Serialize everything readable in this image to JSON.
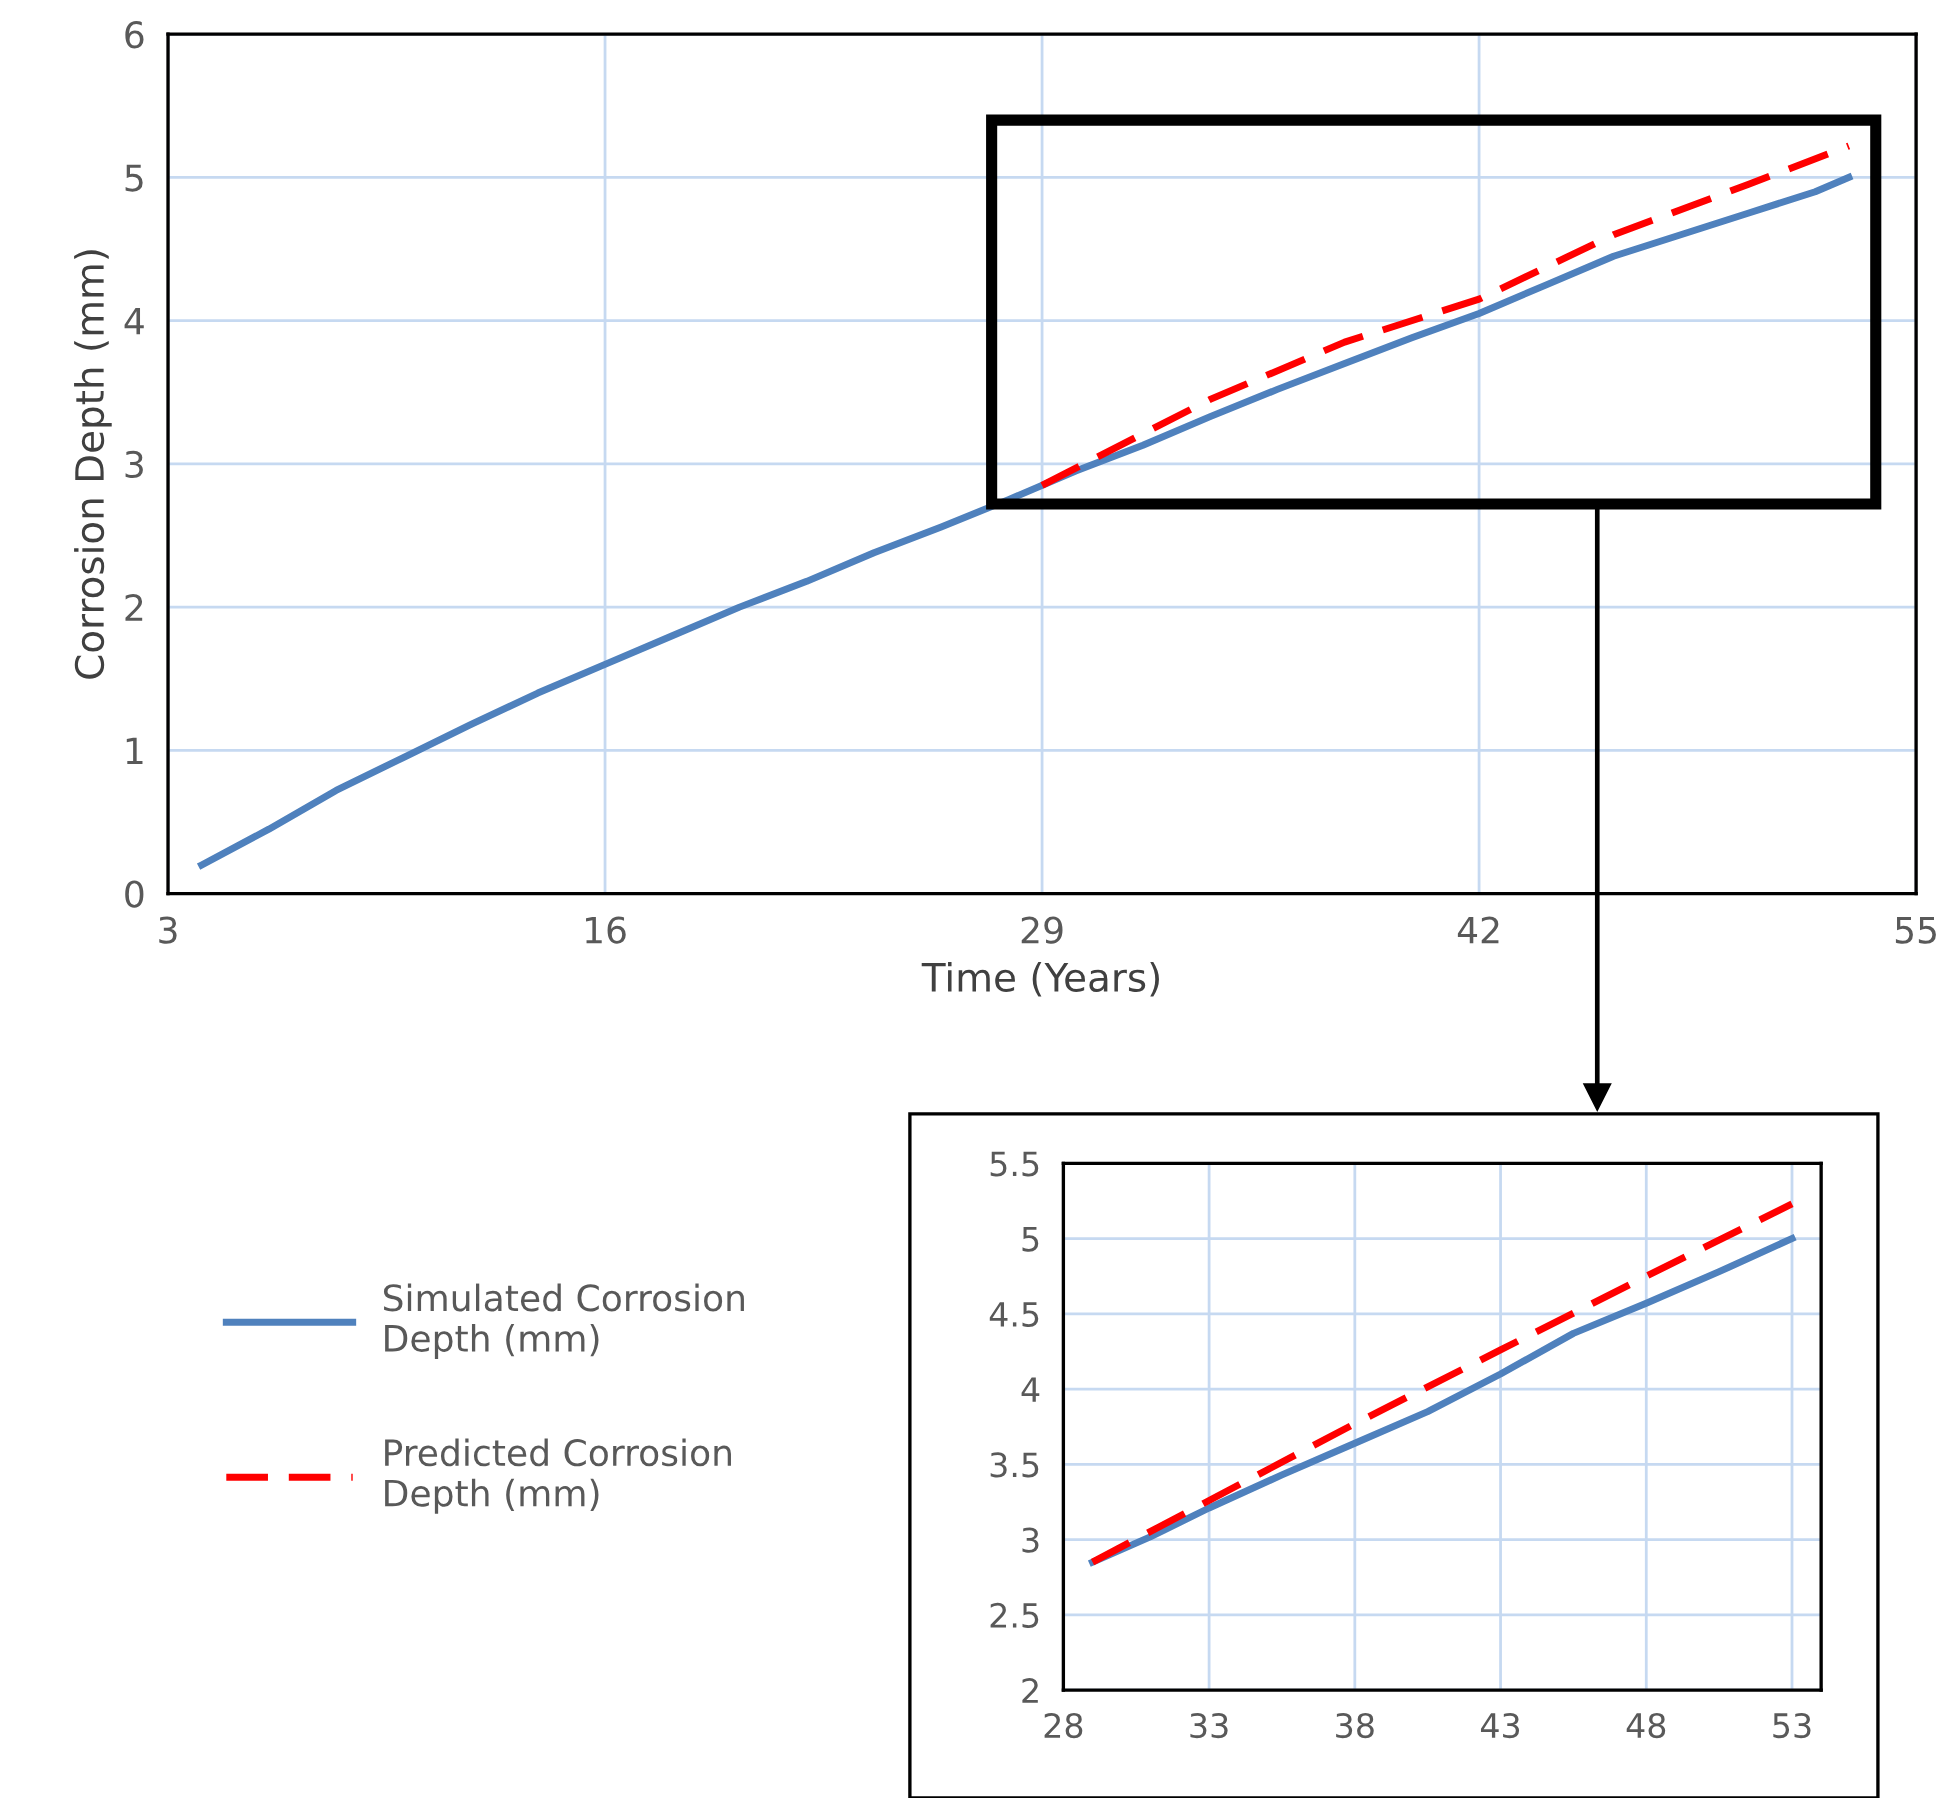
{
  "chart_data": [
    {
      "type": "line",
      "xlabel": "Time (Years)",
      "ylabel": "Corrosion Depth (mm)",
      "xlim": [
        3,
        55
      ],
      "xticks": [
        3,
        16,
        29,
        42,
        55
      ],
      "ylim": [
        0,
        6
      ],
      "yticks": [
        0,
        1,
        2,
        3,
        4,
        5,
        6
      ],
      "grid": true,
      "legend": "bottom left",
      "marker": "none",
      "series": [
        {
          "name": "Simulated Corrosion Depth (mm)",
          "color": "#4f81bd",
          "line_style": "solid",
          "x": [
            4,
            6,
            8,
            10,
            12,
            14,
            16,
            18,
            20,
            22,
            24,
            26,
            28,
            30,
            32,
            34,
            36,
            38,
            40,
            42,
            44,
            46,
            48,
            50,
            52,
            53
          ],
          "values": [
            0.2,
            0.45,
            0.72,
            0.95,
            1.18,
            1.4,
            1.6,
            1.8,
            2.0,
            2.18,
            2.38,
            2.56,
            2.75,
            2.95,
            3.13,
            3.33,
            3.52,
            3.7,
            3.88,
            4.05,
            4.25,
            4.45,
            4.6,
            4.75,
            4.9,
            5.0
          ]
        },
        {
          "name": "Predicted Corrosion Depth (mm)",
          "color": "#ff0000",
          "line_style": "dashed",
          "x": [
            29,
            34,
            38,
            42,
            46,
            50,
            53
          ],
          "values": [
            2.85,
            3.45,
            3.85,
            4.15,
            4.6,
            4.95,
            5.22
          ]
        }
      ]
    },
    {
      "type": "line",
      "xlim": [
        28,
        54
      ],
      "xticks": [
        28,
        33,
        38,
        43,
        48,
        53
      ],
      "ylim": [
        2,
        5.5
      ],
      "yticks": [
        2,
        2.5,
        3,
        3.5,
        4,
        4.5,
        5,
        5.5
      ],
      "grid": true,
      "marker": "none",
      "series": [
        {
          "color": "#4f81bd",
          "line_style": "solid",
          "x": [
            29,
            31,
            33,
            35.5,
            38,
            40.5,
            43,
            45.5,
            48,
            50.5,
            53
          ],
          "values": [
            2.85,
            3.02,
            3.21,
            3.43,
            3.64,
            3.85,
            4.1,
            4.37,
            4.57,
            4.78,
            5.0
          ]
        },
        {
          "color": "#ff0000",
          "line_style": "dashed",
          "x": [
            29,
            33,
            38,
            43,
            48,
            53
          ],
          "values": [
            2.85,
            3.26,
            3.77,
            4.26,
            4.75,
            5.23
          ]
        }
      ]
    }
  ]
}
